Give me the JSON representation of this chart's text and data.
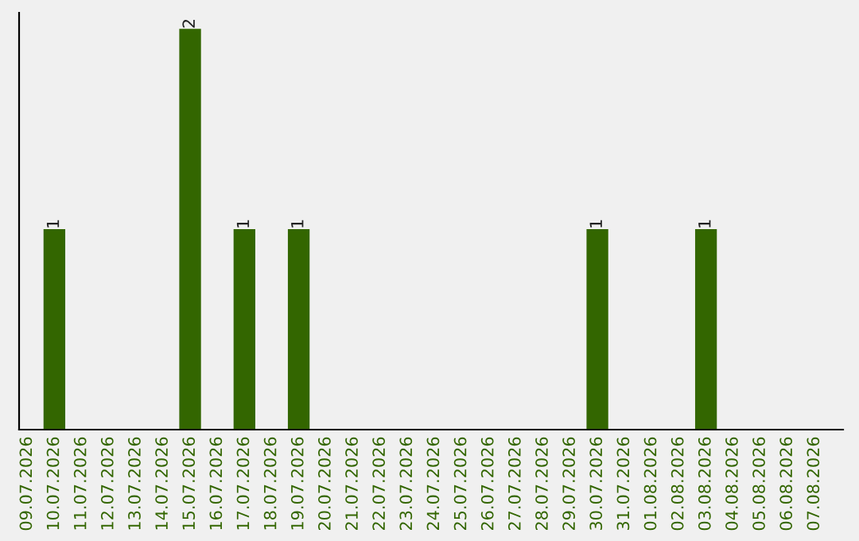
{
  "chart_data": {
    "type": "bar",
    "categories": [
      "09.07.2026",
      "10.07.2026",
      "11.07.2026",
      "12.07.2026",
      "13.07.2026",
      "14.07.2026",
      "15.07.2026",
      "16.07.2026",
      "17.07.2026",
      "18.07.2026",
      "19.07.2026",
      "20.07.2026",
      "21.07.2026",
      "22.07.2026",
      "23.07.2026",
      "24.07.2026",
      "25.07.2026",
      "26.07.2026",
      "27.07.2026",
      "28.07.2026",
      "29.07.2026",
      "30.07.2026",
      "31.07.2026",
      "01.08.2026",
      "02.08.2026",
      "03.08.2026",
      "04.08.2026",
      "05.08.2026",
      "06.08.2026",
      "07.08.2026"
    ],
    "values": [
      0,
      1,
      0,
      0,
      0,
      0,
      2,
      0,
      1,
      0,
      1,
      0,
      0,
      0,
      0,
      0,
      0,
      0,
      0,
      0,
      0,
      1,
      0,
      0,
      0,
      1,
      0,
      0,
      0,
      0
    ],
    "color": "#336600",
    "value_labels": [
      null,
      "1",
      null,
      null,
      null,
      null,
      "2",
      null,
      "1",
      null,
      "1",
      null,
      null,
      null,
      null,
      null,
      null,
      null,
      null,
      null,
      null,
      "1",
      null,
      null,
      null,
      "1",
      null,
      null,
      null,
      null
    ],
    "grid": false,
    "legend": false
  }
}
